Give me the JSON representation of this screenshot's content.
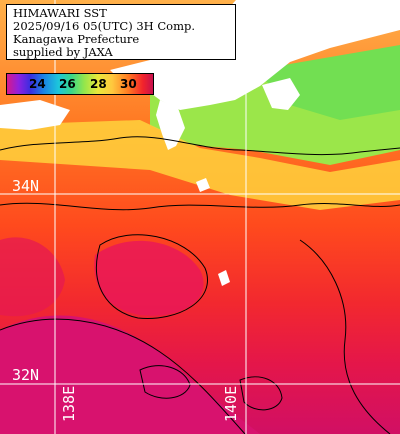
{
  "header": {
    "line1": "HIMAWARI SST",
    "line2": "2025/09/16 05(UTC) 3H Comp.",
    "line3": "Kanagawa Prefecture",
    "line4": "supplied by JAXA"
  },
  "colorbar": {
    "ticks": [
      "24",
      "26",
      "28",
      "30"
    ]
  },
  "grid": {
    "lat_labels": [
      "34N",
      "32N"
    ],
    "lon_labels": [
      "138E",
      "140E"
    ]
  },
  "colors": {
    "land": "#ffffff",
    "contour": "#000000",
    "gridline": "#ffffff"
  }
}
